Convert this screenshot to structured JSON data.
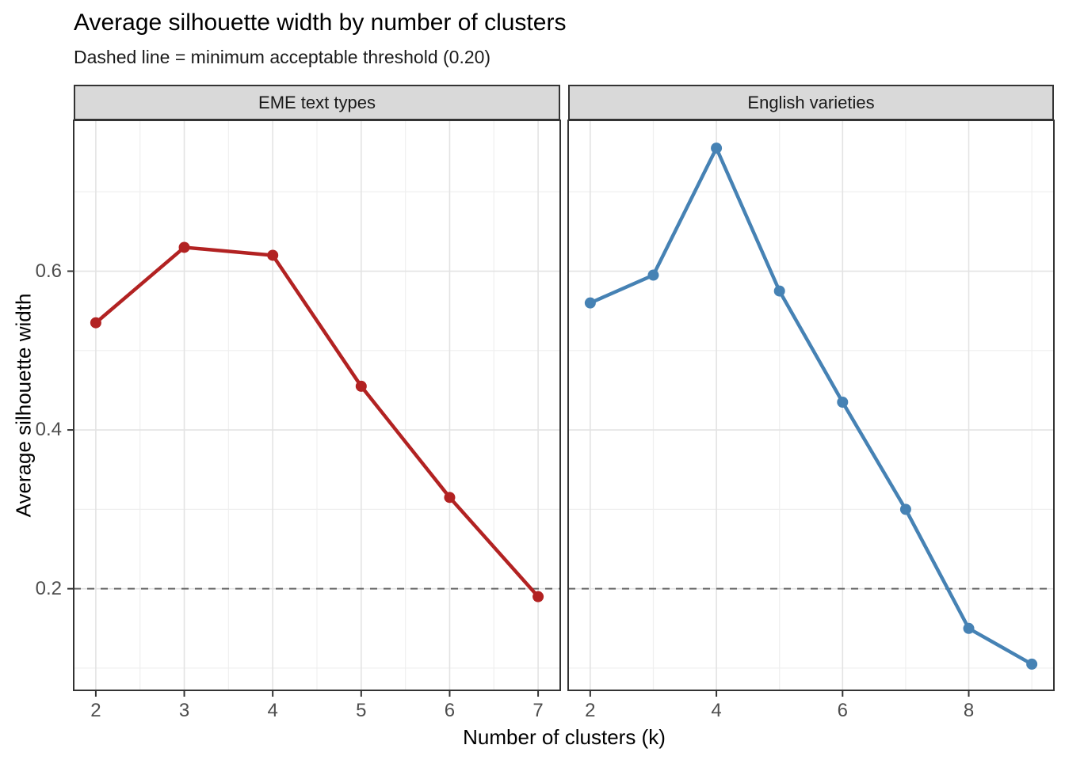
{
  "title": "Average silhouette width by number of clusters",
  "subtitle": "Dashed line = minimum acceptable threshold (0.20)",
  "axes": {
    "x_label": "Number of clusters (k)",
    "y_label": "Average silhouette width",
    "y_tick_labels": [
      "0.2",
      "0.4",
      "0.6"
    ]
  },
  "style": {
    "panel_bg": "#FFFFFF",
    "strip_bg": "#D9D9D9",
    "panel_border": "#333333",
    "grid_major": "#E3E3E3",
    "grid_minor": "#EFEFEF",
    "threshold_color": "#666666",
    "tick_mark_color": "#333333",
    "tick_label_color": "#4D4D4D"
  },
  "chart_data": {
    "type": "line",
    "title": "Average silhouette width by number of clusters",
    "subtitle": "Dashed line = minimum acceptable threshold (0.20)",
    "xlabel": "Number of clusters (k)",
    "ylabel": "Average silhouette width",
    "threshold": 0.2,
    "ylim": [
      0.072,
      0.79
    ],
    "y_major_ticks": [
      0.2,
      0.4,
      0.6
    ],
    "y_minor_ticks": [
      0.1,
      0.3,
      0.5,
      0.7
    ],
    "grid": true,
    "legend": false,
    "facets": [
      {
        "name": "EME text types",
        "color": "#B22222",
        "x": [
          2,
          3,
          4,
          5,
          6,
          7
        ],
        "y": [
          0.535,
          0.63,
          0.62,
          0.455,
          0.315,
          0.19
        ],
        "xlim": [
          1.75,
          7.25
        ],
        "x_major_ticks": [
          2,
          3,
          4,
          5,
          6,
          7
        ],
        "x_minor_ticks": [
          2.5,
          3.5,
          4.5,
          5.5,
          6.5
        ]
      },
      {
        "name": "English varieties",
        "color": "#4682B4",
        "x": [
          2,
          3,
          4,
          5,
          6,
          7,
          8,
          9
        ],
        "y": [
          0.56,
          0.595,
          0.755,
          0.575,
          0.435,
          0.3,
          0.15,
          0.105
        ],
        "xlim": [
          1.65,
          9.35
        ],
        "x_major_ticks": [
          2,
          4,
          6,
          8
        ],
        "x_minor_ticks": [
          3,
          5,
          7,
          9
        ]
      }
    ]
  }
}
